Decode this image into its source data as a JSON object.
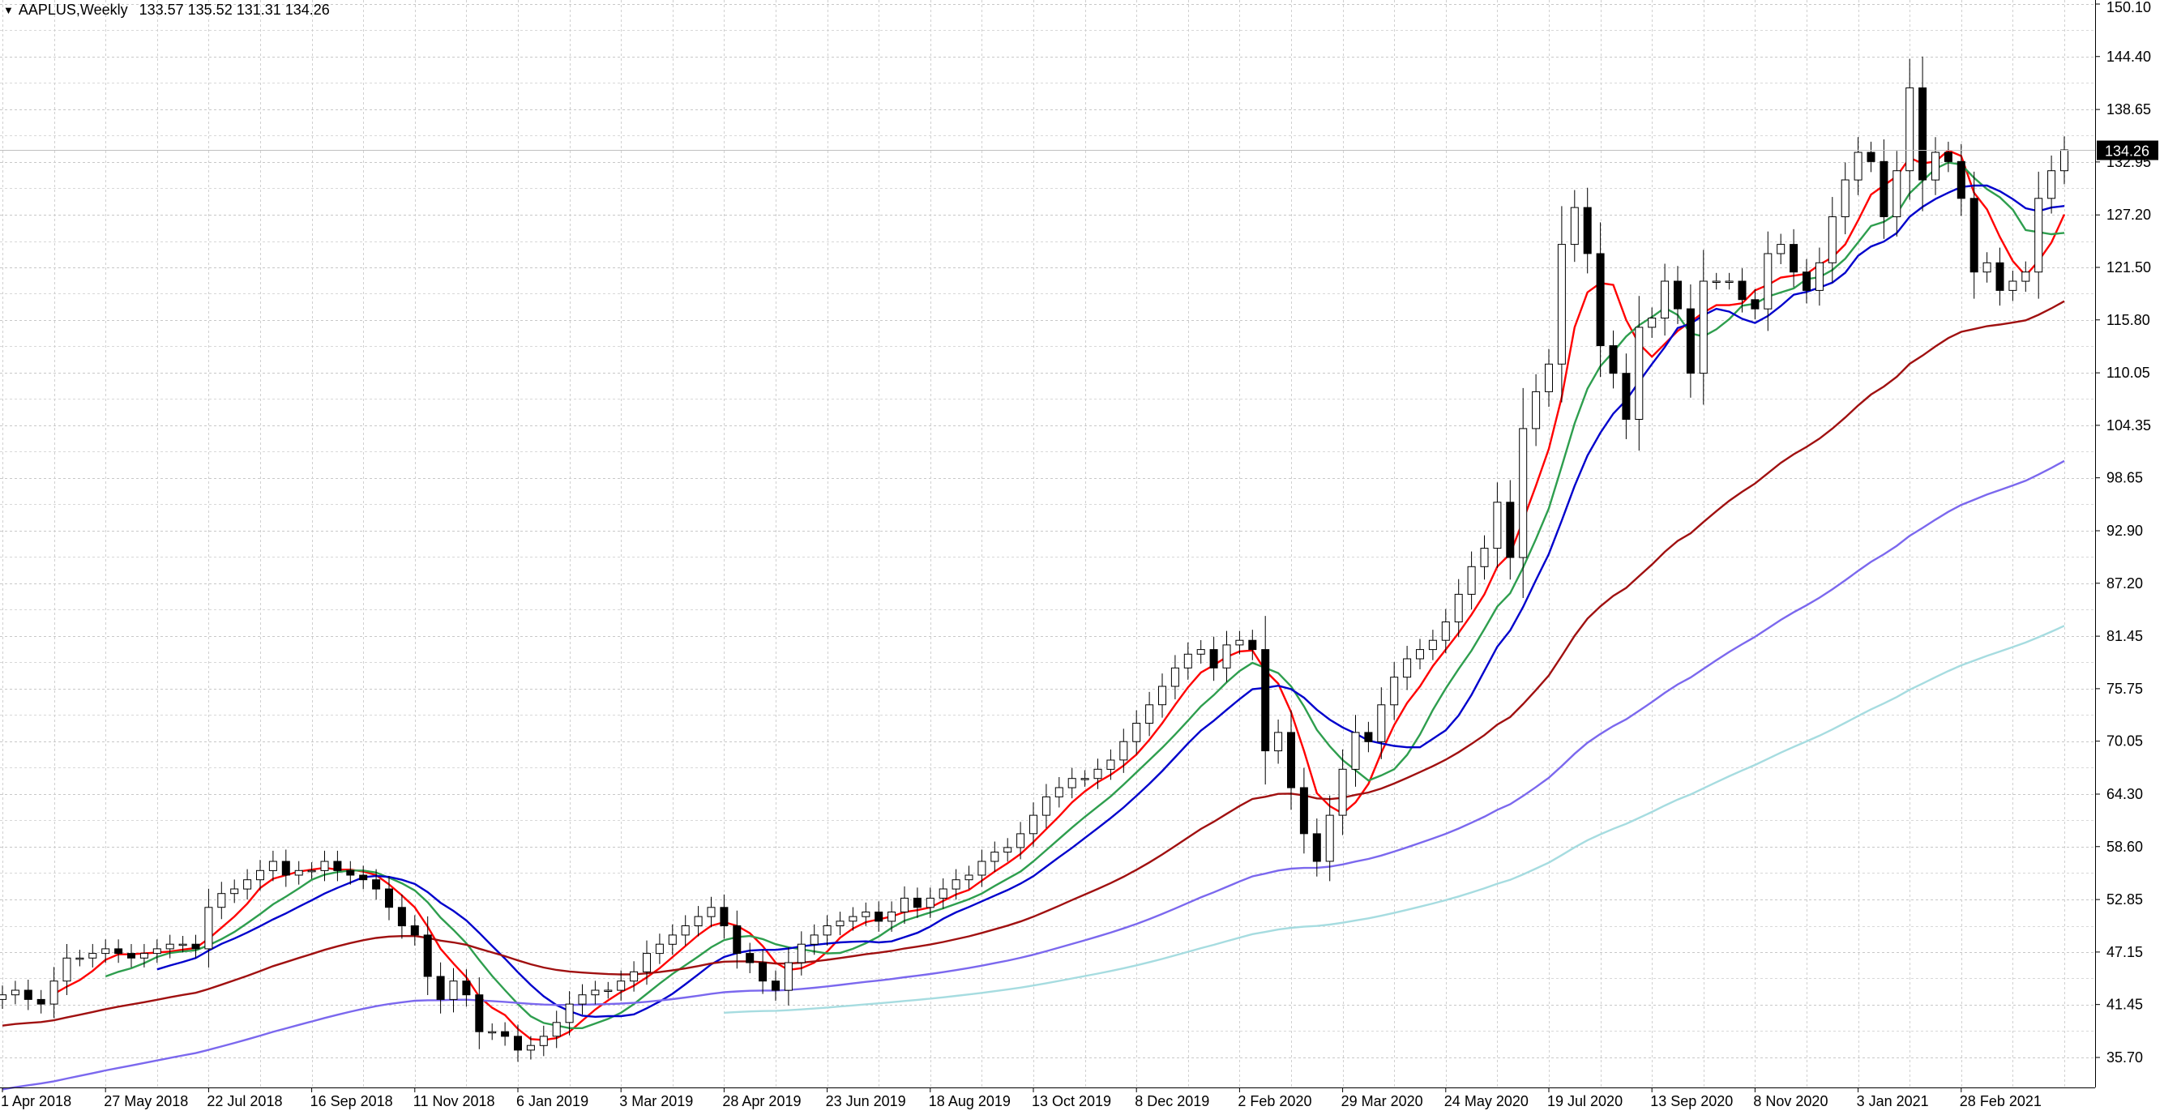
{
  "header": {
    "symbol": "AAPLUS,Weekly",
    "ohlc": "133.57 135.52 131.31 134.26",
    "arrow_icon": "triangle-down-icon"
  },
  "chart_data": {
    "type": "candlestick",
    "symbol": "AAPLUS",
    "timeframe": "Weekly",
    "last_price": "134.26",
    "y_ticks": [
      "150.10",
      "144.40",
      "138.65",
      "132.95",
      "127.20",
      "121.50",
      "115.80",
      "110.05",
      "104.35",
      "98.65",
      "92.90",
      "87.20",
      "81.45",
      "75.75",
      "70.05",
      "64.30",
      "58.60",
      "52.85",
      "47.15",
      "41.45",
      "35.70"
    ],
    "x_labels": [
      {
        "week": 0,
        "label": "1 Apr 2018"
      },
      {
        "week": 8,
        "label": "27 May 2018"
      },
      {
        "week": 16,
        "label": "22 Jul 2018"
      },
      {
        "week": 24,
        "label": "16 Sep 2018"
      },
      {
        "week": 32,
        "label": "11 Nov 2018"
      },
      {
        "week": 40,
        "label": "6 Jan 2019"
      },
      {
        "week": 48,
        "label": "3 Mar 2019"
      },
      {
        "week": 56,
        "label": "28 Apr 2019"
      },
      {
        "week": 64,
        "label": "23 Jun 2019"
      },
      {
        "week": 72,
        "label": "18 Aug 2019"
      },
      {
        "week": 80,
        "label": "13 Oct 2019"
      },
      {
        "week": 88,
        "label": "8 Dec 2019"
      },
      {
        "week": 96,
        "label": "2 Feb 2020"
      },
      {
        "week": 104,
        "label": "29 Mar 2020"
      },
      {
        "week": 112,
        "label": "24 May 2020"
      },
      {
        "week": 120,
        "label": "19 Jul 2020"
      },
      {
        "week": 128,
        "label": "13 Sep 2020"
      },
      {
        "week": 136,
        "label": "8 Nov 2020"
      },
      {
        "week": 144,
        "label": "3 Jan 2021"
      },
      {
        "week": 152,
        "label": "28 Feb 2021"
      }
    ],
    "closes": [
      42.5,
      43,
      42,
      41.5,
      44,
      46.5,
      46.5,
      47,
      47.5,
      47,
      46.5,
      47,
      47.5,
      48,
      48,
      47.5,
      52,
      53.5,
      54,
      55,
      56,
      57,
      55.5,
      56,
      56,
      57,
      56,
      55.5,
      55,
      54,
      52,
      50,
      49,
      44.5,
      42,
      44,
      42.5,
      38.5,
      38.5,
      38,
      36.5,
      37,
      38,
      39.5,
      41.5,
      42.5,
      43,
      43,
      44,
      45,
      47,
      48,
      49,
      50,
      51,
      52,
      50,
      47,
      46,
      44,
      43,
      46,
      48,
      49,
      50,
      50.5,
      51,
      51.5,
      50.5,
      51.5,
      53,
      52,
      53,
      54,
      55,
      55.5,
      57,
      58,
      58.5,
      60,
      62,
      64,
      65,
      66,
      66,
      67,
      68,
      70,
      72,
      74,
      76,
      78,
      79.5,
      80,
      78,
      80.5,
      81,
      80,
      69,
      71,
      65,
      60,
      57,
      62,
      67,
      71,
      70,
      74,
      77,
      79,
      80,
      81,
      83,
      86,
      89,
      91,
      96,
      90,
      104,
      108,
      111,
      124,
      128,
      123,
      113,
      110,
      105,
      115,
      116,
      120,
      117,
      110,
      120,
      120,
      120,
      118,
      117,
      123,
      124,
      121,
      119,
      122,
      127,
      131,
      134,
      133,
      127,
      132,
      141,
      131,
      134,
      133,
      129,
      121,
      122,
      119,
      120,
      121,
      129,
      132,
      134.26
    ],
    "ma_series": [
      {
        "color": "#ff0000"
      },
      {
        "color": "#2e9e4e"
      },
      {
        "color": "#0000cc"
      },
      {
        "color": "#a01010"
      },
      {
        "color": "#7b68ee"
      },
      {
        "color": "#a6dce0"
      }
    ],
    "grid": true,
    "price_axis": "right"
  }
}
